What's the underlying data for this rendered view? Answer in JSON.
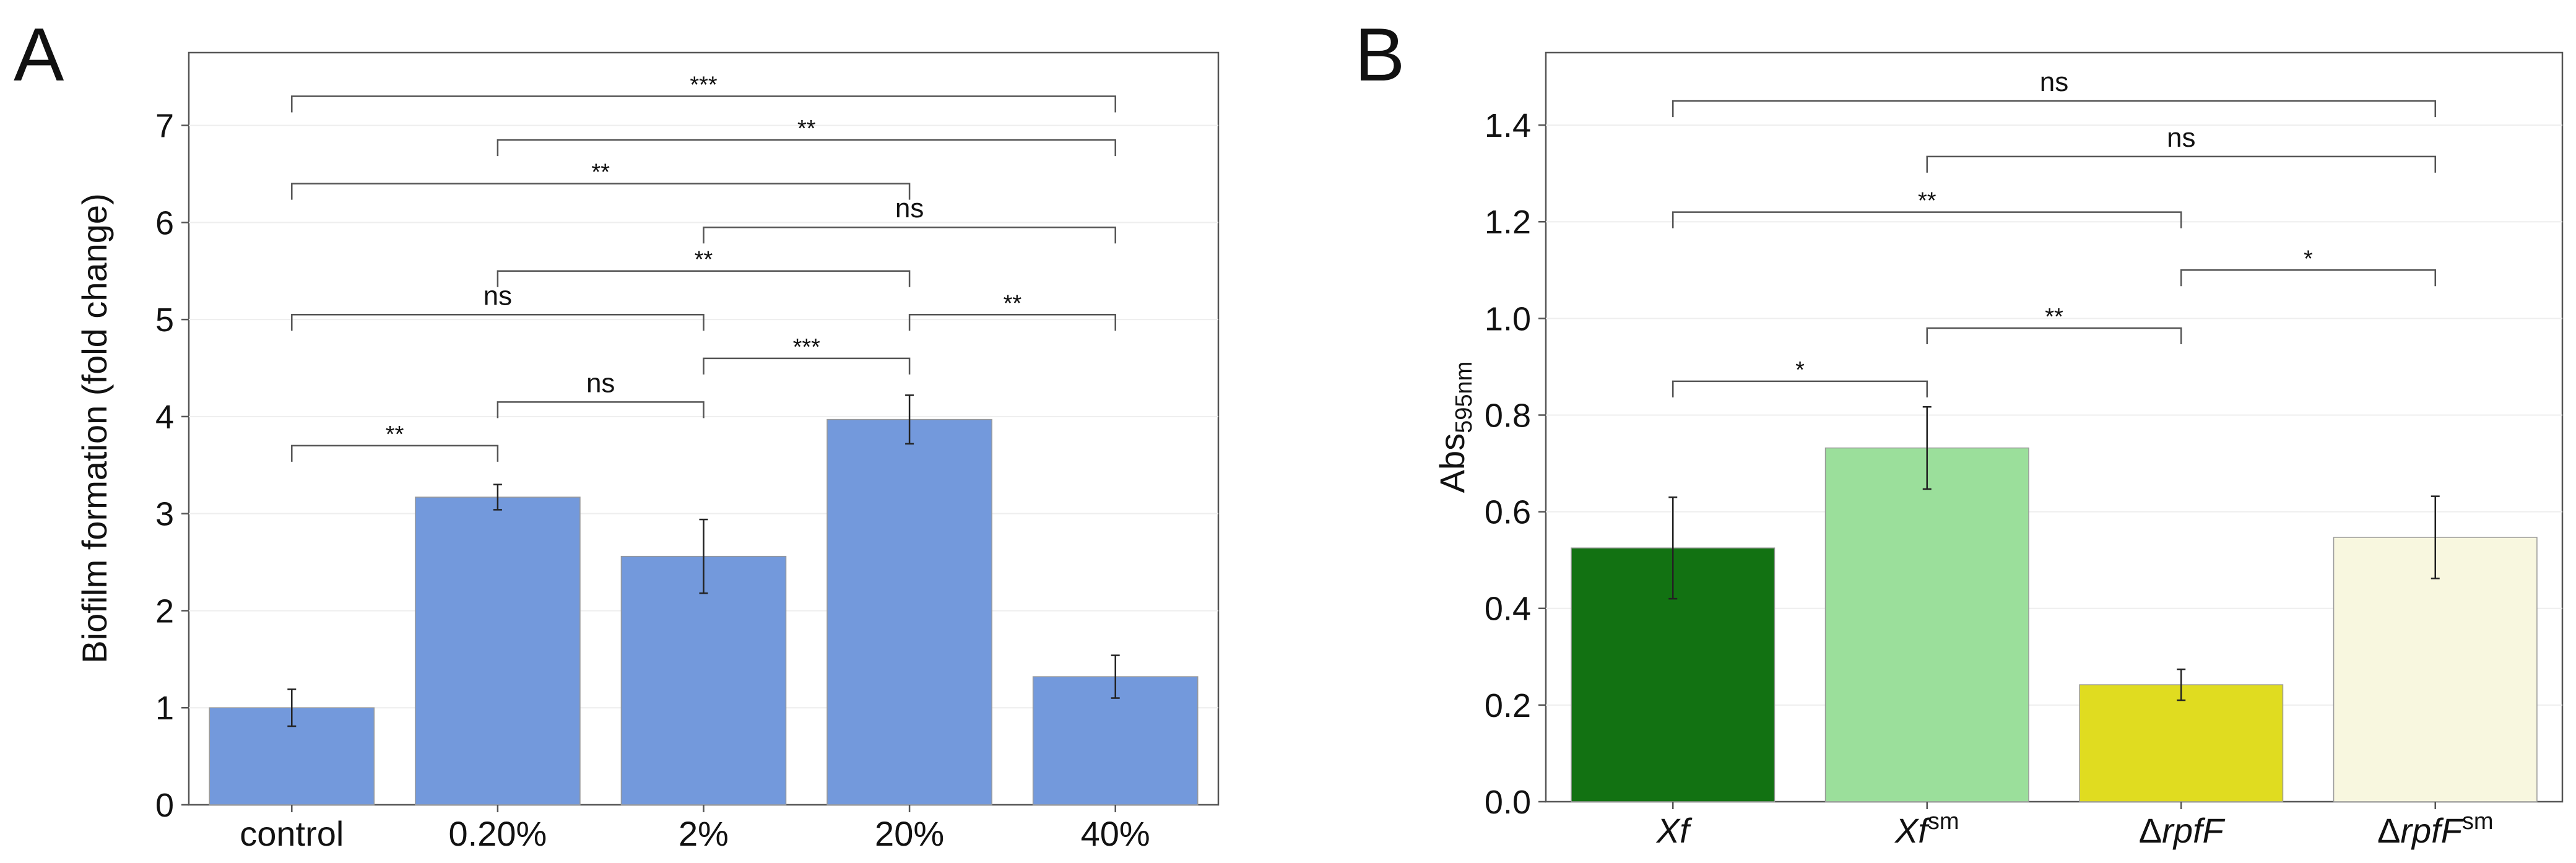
{
  "figure": {
    "panels": [
      "A",
      "B"
    ]
  },
  "chart_data": [
    {
      "panel_label": "A",
      "type": "bar",
      "title": "",
      "xlabel": "",
      "ylabel": "Biofilm formation (fold change)",
      "ylim": [
        0,
        7.75
      ],
      "yticks": [
        0,
        1,
        2,
        3,
        4,
        5,
        6,
        7
      ],
      "grid": true,
      "categories": [
        "control",
        "0.20%",
        "2%",
        "20%",
        "40%"
      ],
      "values": [
        1.0,
        3.17,
        2.56,
        3.97,
        1.32
      ],
      "errors": [
        0.19,
        0.13,
        0.38,
        0.25,
        0.22
      ],
      "bar_color": "#7399dc",
      "bracket_color": "#555555",
      "significance": [
        {
          "from": 0,
          "to": 1,
          "y": 3.7,
          "label": "**"
        },
        {
          "from": 1,
          "to": 2,
          "y": 4.15,
          "label": "ns"
        },
        {
          "from": 2,
          "to": 3,
          "y": 4.6,
          "label": "***"
        },
        {
          "from": 0,
          "to": 2,
          "y": 5.05,
          "label": "ns"
        },
        {
          "from": 3,
          "to": 4,
          "y": 5.05,
          "label": "**"
        },
        {
          "from": 1,
          "to": 3,
          "y": 5.5,
          "label": "**"
        },
        {
          "from": 2,
          "to": 4,
          "y": 5.95,
          "label": "ns"
        },
        {
          "from": 0,
          "to": 3,
          "y": 6.4,
          "label": "**"
        },
        {
          "from": 1,
          "to": 4,
          "y": 6.85,
          "label": "**"
        },
        {
          "from": 0,
          "to": 4,
          "y": 7.3,
          "label": "***"
        }
      ]
    },
    {
      "panel_label": "B",
      "type": "bar",
      "title": "",
      "xlabel": "",
      "ylabel": "Abs",
      "ylabel_subscript": "595nm",
      "ylim": [
        0,
        1.55
      ],
      "yticks": [
        "0.0",
        "0.2",
        "0.4",
        "0.6",
        "0.8",
        "1.0",
        "1.2",
        "1.4"
      ],
      "grid": true,
      "categories": [
        {
          "prefix": "",
          "main": "Xf",
          "sup": ""
        },
        {
          "prefix": "",
          "main": "Xf",
          "sup": "sm"
        },
        {
          "prefix": "Δ",
          "main": "rpfF",
          "sup": ""
        },
        {
          "prefix": "Δ",
          "main": "rpfF",
          "sup": "sm"
        }
      ],
      "values": [
        0.525,
        0.732,
        0.242,
        0.547
      ],
      "errors": [
        0.105,
        0.085,
        0.032,
        0.085
      ],
      "bar_colors": [
        "#127212",
        "#9bdf9b",
        "#e0dc20",
        "#f8f7df"
      ],
      "bracket_color": "#555555",
      "significance": [
        {
          "from": 0,
          "to": 1,
          "y": 0.87,
          "label": "*"
        },
        {
          "from": 1,
          "to": 2,
          "y": 0.98,
          "label": "**"
        },
        {
          "from": 2,
          "to": 3,
          "y": 1.1,
          "label": "*"
        },
        {
          "from": 0,
          "to": 2,
          "y": 1.22,
          "label": "**"
        },
        {
          "from": 1,
          "to": 3,
          "y": 1.335,
          "label": "ns"
        },
        {
          "from": 0,
          "to": 3,
          "y": 1.45,
          "label": "ns"
        }
      ]
    }
  ]
}
